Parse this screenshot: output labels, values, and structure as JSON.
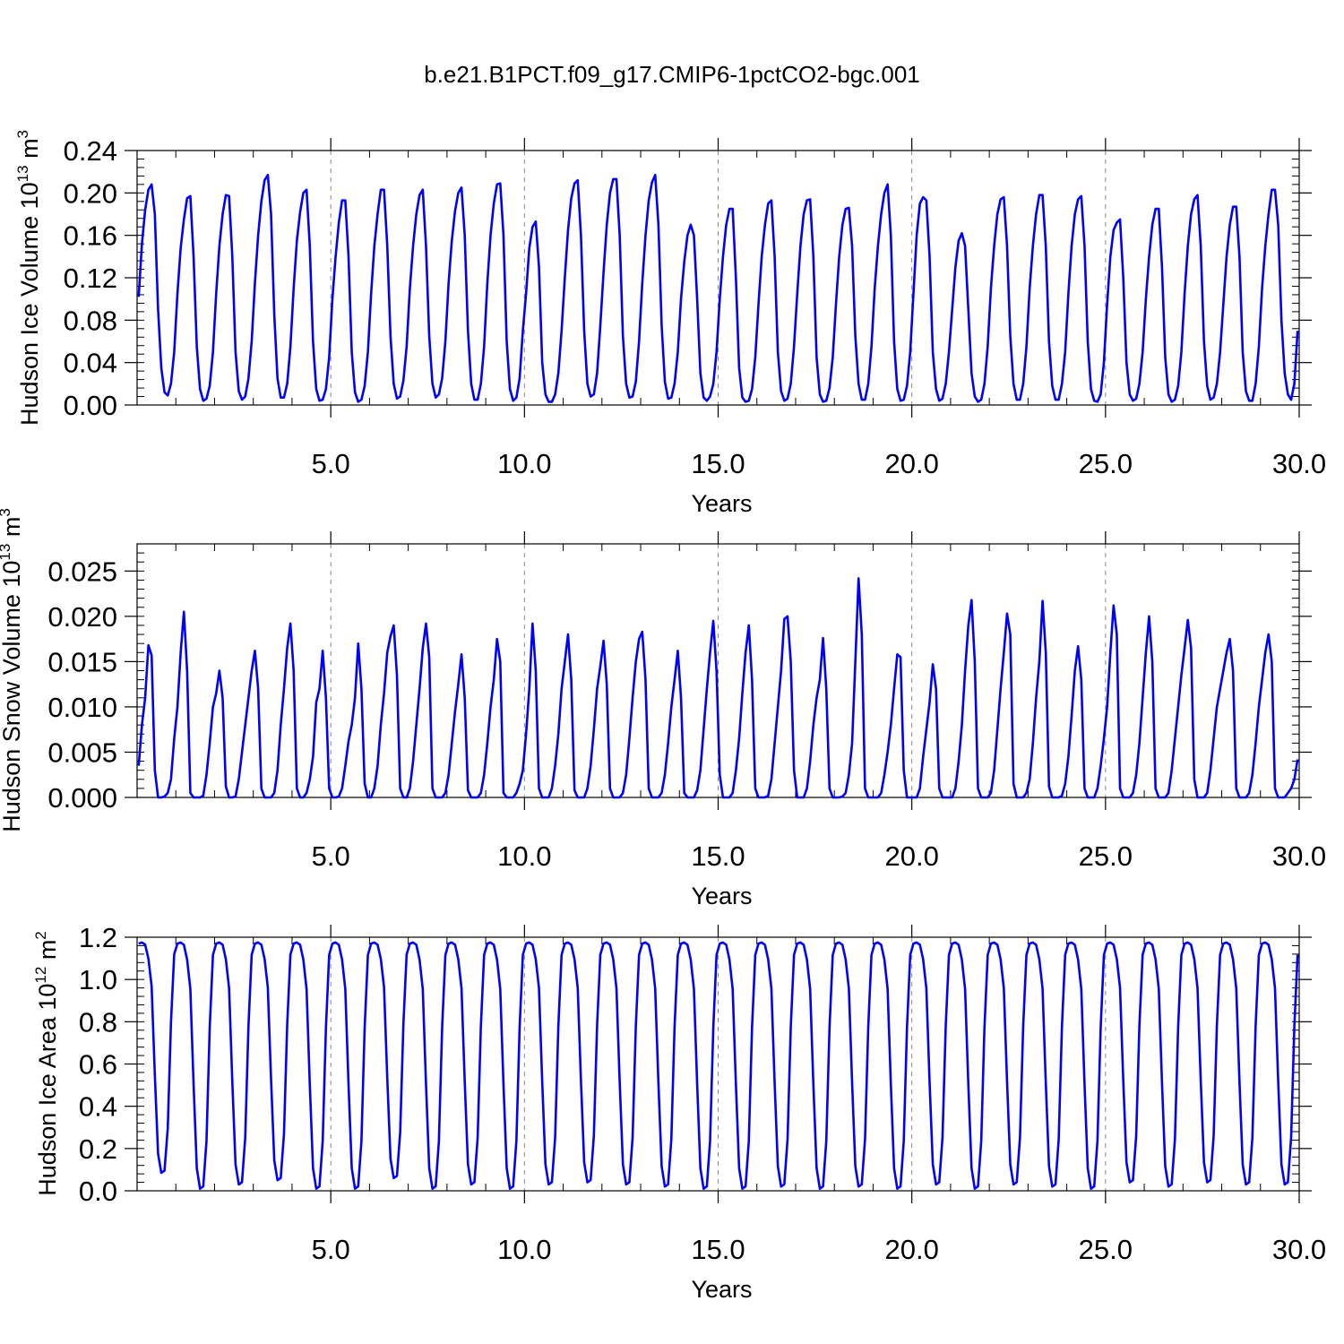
{
  "title": "b.e21.B1PCT.f09_g17.CMIP6-1pctCO2-bgc.001",
  "colors": {
    "line": "#0000ff",
    "axis": "#000000",
    "grid": "#888888"
  },
  "chart_data": [
    {
      "type": "line",
      "xlabel": "Years",
      "ylabel": {
        "base": "Hudson Ice Volume 10",
        "exp": "13",
        "unit": " m",
        "unit_exp": "3"
      },
      "xlim": [
        0,
        30
      ],
      "ylim": [
        0,
        0.24
      ],
      "xticks": [
        5,
        10,
        15,
        20,
        25,
        30
      ],
      "xticklabels": [
        "5.0",
        "10.0",
        "15.0",
        "20.0",
        "25.0",
        "30.0"
      ],
      "yticks": [
        0,
        0.04,
        0.08,
        0.12,
        0.16,
        0.2,
        0.24
      ],
      "yticklabels": [
        "0.00",
        "0.04",
        "0.08",
        "0.12",
        "0.16",
        "0.20",
        "0.24"
      ],
      "grid": "vertical dashed at major x ticks",
      "series": [
        {
          "mode": "monthly",
          "values": [
            0.102,
            0.152,
            0.184,
            0.203,
            0.208,
            0.18,
            0.09,
            0.035,
            0.012,
            0.009,
            0.02,
            0.05,
            0.105,
            0.148,
            0.175,
            0.195,
            0.197,
            0.14,
            0.055,
            0.015,
            0.004,
            0.006,
            0.018,
            0.05,
            0.105,
            0.15,
            0.18,
            0.198,
            0.197,
            0.14,
            0.05,
            0.013,
            0.005,
            0.008,
            0.025,
            0.06,
            0.115,
            0.16,
            0.192,
            0.212,
            0.217,
            0.18,
            0.085,
            0.025,
            0.007,
            0.007,
            0.02,
            0.055,
            0.11,
            0.155,
            0.182,
            0.2,
            0.203,
            0.15,
            0.06,
            0.015,
            0.004,
            0.005,
            0.015,
            0.045,
            0.1,
            0.14,
            0.172,
            0.193,
            0.193,
            0.14,
            0.05,
            0.012,
            0.003,
            0.005,
            0.018,
            0.05,
            0.105,
            0.15,
            0.18,
            0.203,
            0.203,
            0.15,
            0.065,
            0.02,
            0.006,
            0.008,
            0.023,
            0.055,
            0.11,
            0.15,
            0.18,
            0.198,
            0.203,
            0.15,
            0.065,
            0.02,
            0.007,
            0.01,
            0.025,
            0.06,
            0.115,
            0.155,
            0.183,
            0.2,
            0.205,
            0.16,
            0.07,
            0.02,
            0.005,
            0.005,
            0.02,
            0.055,
            0.115,
            0.16,
            0.19,
            0.208,
            0.209,
            0.16,
            0.06,
            0.015,
            0.004,
            0.007,
            0.025,
            0.07,
            0.105,
            0.148,
            0.168,
            0.173,
            0.13,
            0.04,
            0.01,
            0.003,
            0.003,
            0.01,
            0.03,
            0.07,
            0.12,
            0.165,
            0.195,
            0.209,
            0.212,
            0.16,
            0.07,
            0.02,
            0.008,
            0.01,
            0.03,
            0.075,
            0.125,
            0.17,
            0.2,
            0.213,
            0.213,
            0.16,
            0.065,
            0.02,
            0.007,
            0.008,
            0.022,
            0.06,
            0.115,
            0.16,
            0.193,
            0.21,
            0.217,
            0.17,
            0.075,
            0.022,
            0.006,
            0.007,
            0.02,
            0.05,
            0.1,
            0.135,
            0.16,
            0.17,
            0.16,
            0.1,
            0.03,
            0.007,
            0.004,
            0.008,
            0.02,
            0.05,
            0.1,
            0.14,
            0.17,
            0.185,
            0.185,
            0.12,
            0.035,
            0.007,
            0.003,
            0.004,
            0.015,
            0.045,
            0.095,
            0.14,
            0.17,
            0.19,
            0.193,
            0.14,
            0.05,
            0.013,
            0.004,
            0.006,
            0.02,
            0.055,
            0.105,
            0.15,
            0.18,
            0.193,
            0.194,
            0.14,
            0.045,
            0.01,
            0.003,
            0.004,
            0.016,
            0.045,
            0.095,
            0.14,
            0.17,
            0.185,
            0.186,
            0.15,
            0.065,
            0.02,
            0.005,
            0.005,
            0.02,
            0.055,
            0.11,
            0.15,
            0.18,
            0.2,
            0.208,
            0.16,
            0.06,
            0.015,
            0.004,
            0.005,
            0.018,
            0.05,
            0.105,
            0.16,
            0.19,
            0.196,
            0.193,
            0.14,
            0.05,
            0.015,
            0.004,
            0.006,
            0.02,
            0.05,
            0.09,
            0.13,
            0.155,
            0.162,
            0.15,
            0.09,
            0.03,
            0.008,
            0.003,
            0.005,
            0.02,
            0.055,
            0.11,
            0.15,
            0.18,
            0.194,
            0.196,
            0.15,
            0.065,
            0.02,
            0.005,
            0.005,
            0.02,
            0.055,
            0.11,
            0.15,
            0.18,
            0.198,
            0.198,
            0.15,
            0.06,
            0.018,
            0.005,
            0.005,
            0.02,
            0.05,
            0.105,
            0.15,
            0.18,
            0.194,
            0.197,
            0.15,
            0.06,
            0.015,
            0.004,
            0.003,
            0.01,
            0.04,
            0.095,
            0.14,
            0.165,
            0.172,
            0.175,
            0.12,
            0.04,
            0.01,
            0.004,
            0.006,
            0.02,
            0.05,
            0.1,
            0.14,
            0.17,
            0.185,
            0.185,
            0.13,
            0.045,
            0.01,
            0.003,
            0.005,
            0.018,
            0.05,
            0.105,
            0.15,
            0.18,
            0.194,
            0.198,
            0.15,
            0.06,
            0.018,
            0.005,
            0.007,
            0.02,
            0.05,
            0.095,
            0.14,
            0.17,
            0.187,
            0.187,
            0.14,
            0.05,
            0.013,
            0.004,
            0.004,
            0.02,
            0.055,
            0.11,
            0.15,
            0.18,
            0.203,
            0.203,
            0.17,
            0.08,
            0.03,
            0.01,
            0.005,
            0.02,
            0.07
          ]
        }
      ]
    },
    {
      "type": "line",
      "xlabel": "Years",
      "ylabel": {
        "base": "Hudson Snow Volume 10",
        "exp": "13",
        "unit": " m",
        "unit_exp": "3"
      },
      "xlim": [
        0,
        30
      ],
      "ylim": [
        0,
        0.028
      ],
      "xticks": [
        5,
        10,
        15,
        20,
        25,
        30
      ],
      "xticklabels": [
        "5.0",
        "10.0",
        "15.0",
        "20.0",
        "25.0",
        "30.0"
      ],
      "yticks": [
        0,
        0.005,
        0.01,
        0.015,
        0.02,
        0.025
      ],
      "yticklabels": [
        "0.000",
        "0.005",
        "0.010",
        "0.015",
        "0.020",
        "0.025"
      ],
      "grid": "vertical dashed at major x ticks",
      "series": [
        {
          "mode": "monthly",
          "values": [
            0.0035,
            0.008,
            0.011,
            0.0168,
            0.0157,
            0.003,
            0.0,
            0.0,
            0.0001,
            0.0005,
            0.002,
            0.0065,
            0.01,
            0.016,
            0.0205,
            0.014,
            0.0005,
            0.0,
            0.0,
            0.0,
            0.0002,
            0.0025,
            0.006,
            0.01,
            0.0115,
            0.014,
            0.011,
            0.0012,
            0.0,
            0.0,
            0.0001,
            0.002,
            0.005,
            0.008,
            0.011,
            0.014,
            0.0162,
            0.012,
            0.001,
            0.0,
            0.0,
            0.0,
            0.0005,
            0.003,
            0.008,
            0.012,
            0.0165,
            0.0192,
            0.014,
            0.001,
            0.0,
            0.0,
            0.0005,
            0.002,
            0.0045,
            0.0105,
            0.012,
            0.0162,
            0.011,
            0.001,
            0.0,
            0.0,
            0.0001,
            0.001,
            0.0035,
            0.0062,
            0.008,
            0.011,
            0.017,
            0.012,
            0.0015,
            0.0,
            0.0,
            0.001,
            0.0035,
            0.008,
            0.0115,
            0.016,
            0.0178,
            0.019,
            0.0135,
            0.001,
            0.0,
            0.0,
            0.001,
            0.004,
            0.008,
            0.012,
            0.0165,
            0.0192,
            0.0155,
            0.001,
            0.0,
            0.0,
            0.0,
            0.0005,
            0.0025,
            0.006,
            0.0095,
            0.0125,
            0.0158,
            0.011,
            0.0008,
            0.0,
            0.0,
            0.0,
            0.0005,
            0.0025,
            0.006,
            0.01,
            0.013,
            0.0175,
            0.015,
            0.0005,
            0.0,
            0.0,
            0.0,
            0.0005,
            0.0015,
            0.003,
            0.007,
            0.012,
            0.0192,
            0.014,
            0.001,
            0.0,
            0.0,
            0.0,
            0.001,
            0.0035,
            0.007,
            0.012,
            0.015,
            0.018,
            0.013,
            0.0008,
            0.0,
            0.0,
            0.0,
            0.001,
            0.0035,
            0.0075,
            0.012,
            0.0145,
            0.0173,
            0.0125,
            0.001,
            0.0,
            0.0,
            0.0,
            0.0005,
            0.0025,
            0.0065,
            0.011,
            0.015,
            0.0175,
            0.0183,
            0.013,
            0.001,
            0.0,
            0.0,
            0.0,
            0.0005,
            0.0025,
            0.006,
            0.01,
            0.013,
            0.0162,
            0.011,
            0.0005,
            0.0,
            0.0,
            0.0,
            0.0008,
            0.003,
            0.0075,
            0.012,
            0.016,
            0.0195,
            0.014,
            0.0025,
            0.0,
            0.0,
            0.0,
            0.0005,
            0.003,
            0.0065,
            0.0115,
            0.016,
            0.019,
            0.013,
            0.001,
            0.0,
            0.0,
            0.0,
            0.0002,
            0.002,
            0.006,
            0.01,
            0.014,
            0.0197,
            0.02,
            0.015,
            0.003,
            0.0,
            0.0,
            0.0,
            0.001,
            0.004,
            0.008,
            0.011,
            0.013,
            0.0176,
            0.012,
            0.001,
            0.0,
            0.0,
            0.0,
            0.0001,
            0.0005,
            0.0025,
            0.006,
            0.015,
            0.0242,
            0.018,
            0.001,
            0.0,
            0.0,
            0.0,
            0.0,
            0.0005,
            0.0025,
            0.005,
            0.008,
            0.012,
            0.0158,
            0.0155,
            0.003,
            0.0,
            0.0,
            0.0,
            0.0,
            0.001,
            0.0045,
            0.0075,
            0.0105,
            0.0147,
            0.012,
            0.001,
            0.0,
            0.0,
            0.0,
            0.0,
            0.001,
            0.004,
            0.008,
            0.014,
            0.019,
            0.0218,
            0.015,
            0.001,
            0.0,
            0.0,
            0.0,
            0.0005,
            0.003,
            0.0075,
            0.012,
            0.016,
            0.0203,
            0.018,
            0.0015,
            0.0,
            0.0,
            0.0,
            0.0005,
            0.002,
            0.006,
            0.011,
            0.015,
            0.0217,
            0.016,
            0.0012,
            0.0,
            0.0,
            0.0,
            0.0002,
            0.0015,
            0.0045,
            0.009,
            0.014,
            0.0167,
            0.013,
            0.001,
            0.0,
            0.0,
            0.0,
            0.001,
            0.0035,
            0.0065,
            0.01,
            0.016,
            0.0212,
            0.018,
            0.001,
            0.0,
            0.0,
            0.0,
            0.0005,
            0.0025,
            0.006,
            0.011,
            0.016,
            0.02,
            0.015,
            0.001,
            0.0,
            0.0,
            0.0,
            0.0005,
            0.003,
            0.0065,
            0.01,
            0.0135,
            0.0165,
            0.0196,
            0.0165,
            0.002,
            0.0,
            0.0,
            0.0,
            0.0005,
            0.003,
            0.0065,
            0.01,
            0.012,
            0.014,
            0.016,
            0.0175,
            0.014,
            0.001,
            0.0,
            0.0,
            0.0,
            0.0005,
            0.0025,
            0.006,
            0.01,
            0.013,
            0.016,
            0.018,
            0.015,
            0.001,
            0.0,
            0.0,
            0.0,
            0.0005,
            0.001,
            0.002,
            0.0042
          ]
        }
      ]
    },
    {
      "type": "line",
      "xlabel": "Years",
      "ylabel": {
        "base": "Hudson Ice Area 10",
        "exp": "12",
        "unit": " m",
        "unit_exp": "2"
      },
      "xlim": [
        0,
        30
      ],
      "ylim": [
        0,
        1.2
      ],
      "xticks": [
        5,
        10,
        15,
        20,
        25,
        30
      ],
      "xticklabels": [
        "5.0",
        "10.0",
        "15.0",
        "20.0",
        "25.0",
        "30.0"
      ],
      "yticks": [
        0,
        0.2,
        0.4,
        0.6,
        0.8,
        1.0,
        1.2
      ],
      "yticklabels": [
        "0.0",
        "0.2",
        "0.4",
        "0.6",
        "0.8",
        "1.0",
        "1.2"
      ],
      "grid": "vertical dashed at major x ticks",
      "series": [
        {
          "mode": "annual-shape",
          "shape": [
            1.17,
            1.175,
            1.165,
            1.1,
            0.97,
            0.55,
            0.18,
            0.09,
            0.1,
            0.3,
            0.8,
            1.12
          ],
          "minima": [
            0.085,
            0.01,
            0.03,
            0.05,
            0.01,
            0.01,
            0.06,
            0.01,
            0.03,
            0.01,
            0.03,
            0.04,
            0.03,
            0.02,
            0.01,
            0.01,
            0.02,
            0.01,
            0.02,
            0.01,
            0.03,
            0.01,
            0.03,
            0.02,
            0.01,
            0.04,
            0.02,
            0.04,
            0.03,
            0.03
          ]
        }
      ]
    }
  ]
}
